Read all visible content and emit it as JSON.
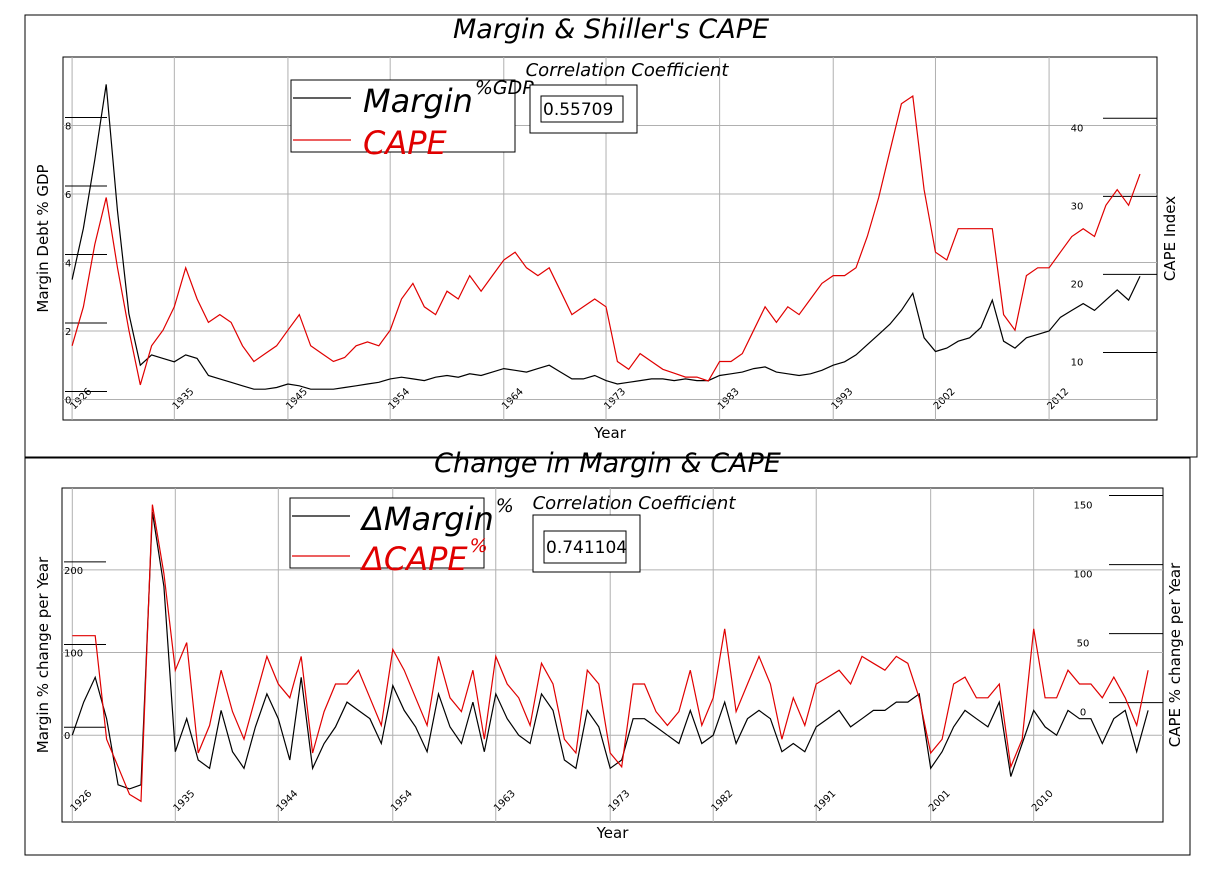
{
  "chart_data": [
    {
      "type": "line",
      "title": "Margin & Shiller's CAPE",
      "correlation_label": "Correlation Coefficient",
      "correlation_value": "0.55709",
      "x_label": "Year",
      "y_label": "Margin Debt % GDP",
      "y2_label": "CAPE Index",
      "xlim": [
        1925.2,
        2021.5
      ],
      "xticks": [
        1926,
        1935,
        1945,
        1954,
        1964,
        1973,
        1983,
        1993,
        2002,
        2012
      ],
      "ylim": [
        -0.6,
        10
      ],
      "yticks": [
        0,
        2,
        4,
        6,
        8
      ],
      "y2lim": [
        2.5,
        49
      ],
      "y2ticks": [
        10,
        20,
        30,
        40
      ],
      "grid": true,
      "x": [
        1926,
        1927,
        1928,
        1929,
        1930,
        1931,
        1932,
        1933,
        1934,
        1935,
        1936,
        1937,
        1938,
        1939,
        1940,
        1941,
        1942,
        1943,
        1944,
        1945,
        1946,
        1947,
        1948,
        1949,
        1950,
        1951,
        1952,
        1953,
        1954,
        1955,
        1956,
        1957,
        1958,
        1959,
        1960,
        1961,
        1962,
        1963,
        1964,
        1965,
        1966,
        1967,
        1968,
        1969,
        1970,
        1971,
        1972,
        1973,
        1974,
        1975,
        1976,
        1977,
        1978,
        1979,
        1980,
        1981,
        1982,
        1983,
        1984,
        1985,
        1986,
        1987,
        1988,
        1989,
        1990,
        1991,
        1992,
        1993,
        1994,
        1995,
        1996,
        1997,
        1998,
        1999,
        2000,
        2001,
        2002,
        2003,
        2004,
        2005,
        2006,
        2007,
        2008,
        2009,
        2010,
        2011,
        2012,
        2013,
        2014,
        2015,
        2016,
        2017,
        2018,
        2019,
        2020
      ],
      "series": [
        {
          "name": "Margin",
          "name_superscript": "%GDP",
          "color": "#000000",
          "axis": "y",
          "values": [
            3.5,
            5,
            7,
            9.2,
            5.5,
            2.5,
            1.0,
            1.3,
            1.2,
            1.1,
            1.3,
            1.2,
            0.7,
            0.6,
            0.5,
            0.4,
            0.3,
            0.3,
            0.35,
            0.45,
            0.4,
            0.3,
            0.3,
            0.3,
            0.35,
            0.4,
            0.45,
            0.5,
            0.6,
            0.65,
            0.6,
            0.55,
            0.65,
            0.7,
            0.65,
            0.75,
            0.7,
            0.8,
            0.9,
            0.85,
            0.8,
            0.9,
            1.0,
            0.8,
            0.6,
            0.6,
            0.7,
            0.55,
            0.45,
            0.5,
            0.55,
            0.6,
            0.6,
            0.55,
            0.6,
            0.55,
            0.55,
            0.7,
            0.75,
            0.8,
            0.9,
            0.95,
            0.8,
            0.75,
            0.7,
            0.75,
            0.85,
            1.0,
            1.1,
            1.3,
            1.6,
            1.9,
            2.2,
            2.6,
            3.1,
            1.8,
            1.4,
            1.5,
            1.7,
            1.8,
            2.1,
            2.9,
            1.7,
            1.5,
            1.8,
            1.9,
            2.0,
            2.4,
            2.6,
            2.8,
            2.6,
            2.9,
            3.2,
            2.9,
            3.6
          ]
        },
        {
          "name": "CAPE",
          "color": "#e00000",
          "axis": "y2",
          "values": [
            12,
            17,
            25,
            31,
            22,
            14,
            7,
            12,
            14,
            17,
            22,
            18,
            15,
            16,
            15,
            12,
            10,
            11,
            12,
            14,
            16,
            12,
            11,
            10,
            10.5,
            12,
            12.5,
            12,
            14,
            18,
            20,
            17,
            16,
            19,
            18,
            21,
            19,
            21,
            23,
            24,
            22,
            21,
            22,
            19,
            16,
            17,
            18,
            17,
            10,
            9,
            11,
            10,
            9,
            8.5,
            8,
            8,
            7.5,
            10,
            10,
            11,
            14,
            17,
            15,
            17,
            16,
            18,
            20,
            21,
            21,
            22,
            26,
            31,
            37,
            43,
            44,
            32,
            24,
            23,
            27,
            27,
            27,
            27,
            16,
            14,
            21,
            22,
            22,
            24,
            26,
            27,
            26,
            30,
            32,
            30,
            34
          ]
        }
      ]
    },
    {
      "type": "line",
      "title": "Change in Margin & CAPE",
      "correlation_label": "Correlation Coefficient",
      "correlation_value": "0.741104",
      "x_label": "Year",
      "y_label": "Margin % change per Year",
      "y2_label": "CAPE  % change per Year",
      "xlim": [
        1925.1,
        2021.3
      ],
      "xticks": [
        1926,
        1935,
        1944,
        1954,
        1963,
        1973,
        1982,
        1991,
        2001,
        2010
      ],
      "ylim": [
        -105,
        299
      ],
      "yticks": [
        0,
        100,
        200
      ],
      "y2lim": [
        -80,
        162
      ],
      "y2ticks": [
        0,
        50,
        100,
        150
      ],
      "grid": true,
      "x": [
        1926,
        1927,
        1928,
        1929,
        1930,
        1931,
        1932,
        1933,
        1934,
        1935,
        1936,
        1937,
        1938,
        1939,
        1940,
        1941,
        1942,
        1943,
        1944,
        1945,
        1946,
        1947,
        1948,
        1949,
        1950,
        1951,
        1952,
        1953,
        1954,
        1955,
        1956,
        1957,
        1958,
        1959,
        1960,
        1961,
        1962,
        1963,
        1964,
        1965,
        1966,
        1967,
        1968,
        1969,
        1970,
        1971,
        1972,
        1973,
        1974,
        1975,
        1976,
        1977,
        1978,
        1979,
        1980,
        1981,
        1982,
        1983,
        1984,
        1985,
        1986,
        1987,
        1988,
        1989,
        1990,
        1991,
        1992,
        1993,
        1994,
        1995,
        1996,
        1997,
        1998,
        1999,
        2000,
        2001,
        2002,
        2003,
        2004,
        2005,
        2006,
        2007,
        2008,
        2009,
        2010,
        2011,
        2012,
        2013,
        2014,
        2015,
        2016,
        2017,
        2018,
        2019,
        2020
      ],
      "series": [
        {
          "name": "ΔMargin",
          "name_superscript": "%",
          "color": "#000000",
          "axis": "y",
          "values": [
            0,
            40,
            70,
            20,
            -60,
            -65,
            -60,
            270,
            180,
            -20,
            20,
            -30,
            -40,
            30,
            -20,
            -40,
            10,
            50,
            20,
            -30,
            70,
            -40,
            -10,
            10,
            40,
            30,
            20,
            -10,
            60,
            30,
            10,
            -20,
            50,
            10,
            -10,
            40,
            -20,
            50,
            20,
            0,
            -10,
            50,
            30,
            -30,
            -40,
            30,
            10,
            -40,
            -30,
            20,
            20,
            10,
            0,
            -10,
            30,
            -10,
            0,
            40,
            -10,
            20,
            30,
            20,
            -20,
            -10,
            -20,
            10,
            20,
            30,
            10,
            20,
            30,
            30,
            40,
            40,
            50,
            -40,
            -20,
            10,
            30,
            20,
            10,
            40,
            -50,
            -10,
            30,
            10,
            0,
            30,
            20,
            20,
            -10,
            20,
            30,
            -20,
            30
          ]
        },
        {
          "name": "ΔCAPE",
          "name_superscript": "%",
          "color": "#e00000",
          "axis": "y2",
          "values": [
            55,
            55,
            55,
            -20,
            -40,
            -60,
            -65,
            150,
            100,
            30,
            50,
            -30,
            -10,
            30,
            0,
            -20,
            10,
            40,
            20,
            10,
            40,
            -30,
            0,
            20,
            20,
            30,
            10,
            -10,
            45,
            30,
            10,
            -10,
            40,
            10,
            0,
            30,
            -20,
            40,
            20,
            10,
            -10,
            35,
            20,
            -20,
            -30,
            30,
            20,
            -30,
            -40,
            20,
            20,
            0,
            -10,
            0,
            30,
            -10,
            10,
            60,
            0,
            20,
            40,
            20,
            -20,
            10,
            -10,
            20,
            25,
            30,
            20,
            40,
            35,
            30,
            40,
            35,
            10,
            -30,
            -20,
            20,
            25,
            10,
            10,
            20,
            -40,
            -20,
            60,
            10,
            10,
            30,
            20,
            20,
            10,
            25,
            10,
            -10,
            30
          ]
        }
      ]
    }
  ]
}
